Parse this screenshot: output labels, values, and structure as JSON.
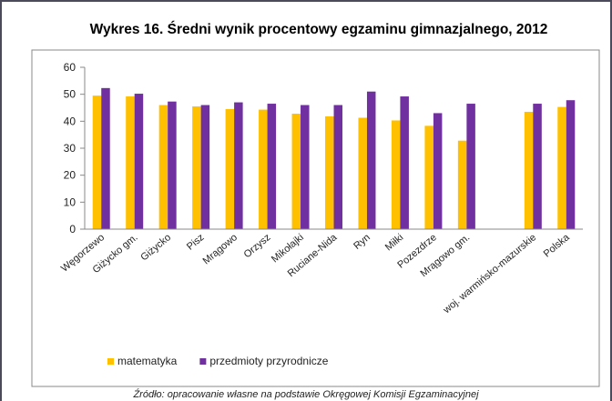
{
  "chart_data": {
    "type": "bar",
    "title": "Wykres 16. Średni wynik procentowy egzaminu gimnazjalnego, 2012",
    "source": "Źródło: opracowanie własne na podstawie Okręgowej Komisji Egzaminacyjnej",
    "categories": [
      "Węgorzewo",
      "Giżycko gm.",
      "Giżycko",
      "Pisz",
      "Mrągowo",
      "Orzysz",
      "Mikołajki",
      "Ruciane-Nida",
      "Ryn",
      "Miłki",
      "Pozezdrze",
      "Mrągowo gm.",
      null,
      "woj. warmińsko-mazurskie",
      "Polska"
    ],
    "series": [
      {
        "name": "matematyka",
        "color": "#ffc000",
        "values": [
          49.5,
          49.2,
          46,
          45.5,
          44.5,
          44.3,
          42.8,
          41.8,
          41.3,
          40.3,
          38.3,
          32.8,
          null,
          43.5,
          45.3
        ]
      },
      {
        "name": "przedmioty przyrodnicze",
        "color": "#7030a0",
        "values": [
          52.3,
          50.2,
          47.3,
          46,
          47,
          46.5,
          46,
          46,
          51,
          49.2,
          43,
          46.5,
          null,
          46.5,
          47.8
        ]
      }
    ],
    "ylim": [
      0,
      60
    ],
    "yticks": [
      0,
      10,
      20,
      30,
      40,
      50,
      60
    ],
    "grid": false,
    "legend": "bottom"
  }
}
